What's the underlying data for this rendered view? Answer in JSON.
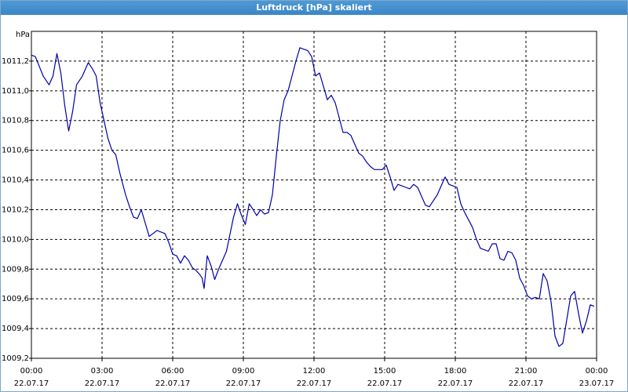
{
  "window": {
    "title": "Luftdruck [hPa] skaliert"
  },
  "colors": {
    "line": "#0000aa",
    "grid": "#000000",
    "titlebar": "#3a86c6"
  },
  "chart_data": {
    "type": "line",
    "title": "Luftdruck [hPa] skaliert",
    "ylabel": "hPa",
    "xlabel": "",
    "grid": true,
    "ylim": [
      1009.2,
      1011.4
    ],
    "xlim": [
      "22.07.17 00:00",
      "23.07.17 00:00"
    ],
    "y_ticks": [
      {
        "value": 1009.2,
        "label": "1009,2"
      },
      {
        "value": 1009.4,
        "label": "1009,4"
      },
      {
        "value": 1009.6,
        "label": "1009,6"
      },
      {
        "value": 1009.8,
        "label": "1009,8"
      },
      {
        "value": 1010.0,
        "label": "1010,0"
      },
      {
        "value": 1010.2,
        "label": "1010,2"
      },
      {
        "value": 1010.4,
        "label": "1010,4"
      },
      {
        "value": 1010.6,
        "label": "1010,6"
      },
      {
        "value": 1010.8,
        "label": "1010,8"
      },
      {
        "value": 1011.0,
        "label": "1011,0"
      },
      {
        "value": 1011.2,
        "label": "1011,2"
      }
    ],
    "x_ticks": [
      {
        "time": "00:00",
        "date": "22.07.17"
      },
      {
        "time": "03:00",
        "date": "22.07.17"
      },
      {
        "time": "06:00",
        "date": "22.07.17"
      },
      {
        "time": "09:00",
        "date": "22.07.17"
      },
      {
        "time": "12:00",
        "date": "22.07.17"
      },
      {
        "time": "15:00",
        "date": "22.07.17"
      },
      {
        "time": "18:00",
        "date": "22.07.17"
      },
      {
        "time": "21:00",
        "date": "22.07.17"
      },
      {
        "time": "00:00",
        "date": "23.07.17"
      }
    ],
    "series": [
      {
        "points": [
          [
            "22.07.17 00:00",
            1011.24
          ],
          [
            "22.07.17 00:10",
            1011.23
          ],
          [
            "22.07.17 00:30",
            1011.1
          ],
          [
            "22.07.17 00:45",
            1011.04
          ],
          [
            "22.07.17 00:55",
            1011.1
          ],
          [
            "22.07.17 01:05",
            1011.25
          ],
          [
            "22.07.17 01:15",
            1011.12
          ],
          [
            "22.07.17 01:25",
            1010.9
          ],
          [
            "22.07.17 01:35",
            1010.73
          ],
          [
            "22.07.17 01:45",
            1010.86
          ],
          [
            "22.07.17 01:55",
            1011.04
          ],
          [
            "22.07.17 02:10",
            1011.1
          ],
          [
            "22.07.17 02:25",
            1011.19
          ],
          [
            "22.07.17 02:35",
            1011.15
          ],
          [
            "22.07.17 02:45",
            1011.1
          ],
          [
            "22.07.17 02:55",
            1010.92
          ],
          [
            "22.07.17 03:05",
            1010.8
          ],
          [
            "22.07.17 03:15",
            1010.68
          ],
          [
            "22.07.17 03:25",
            1010.6
          ],
          [
            "22.07.17 03:35",
            1010.57
          ],
          [
            "22.07.17 03:45",
            1010.45
          ],
          [
            "22.07.17 04:00",
            1010.3
          ],
          [
            "22.07.17 04:10",
            1010.22
          ],
          [
            "22.07.17 04:20",
            1010.15
          ],
          [
            "22.07.17 04:30",
            1010.14
          ],
          [
            "22.07.17 04:40",
            1010.2
          ],
          [
            "22.07.17 04:50",
            1010.11
          ],
          [
            "22.07.17 05:00",
            1010.02
          ],
          [
            "22.07.17 05:10",
            1010.04
          ],
          [
            "22.07.17 05:20",
            1010.06
          ],
          [
            "22.07.17 05:40",
            1010.04
          ],
          [
            "22.07.17 05:50",
            1009.98
          ],
          [
            "22.07.17 06:00",
            1009.9
          ],
          [
            "22.07.17 06:10",
            1009.89
          ],
          [
            "22.07.17 06:20",
            1009.84
          ],
          [
            "22.07.17 06:30",
            1009.89
          ],
          [
            "22.07.17 06:40",
            1009.86
          ],
          [
            "22.07.17 06:50",
            1009.81
          ],
          [
            "22.07.17 07:00",
            1009.79
          ],
          [
            "22.07.17 07:10",
            1009.76
          ],
          [
            "22.07.17 07:15",
            1009.74
          ],
          [
            "22.07.17 07:20",
            1009.67
          ],
          [
            "22.07.17 07:28",
            1009.89
          ],
          [
            "22.07.17 07:38",
            1009.82
          ],
          [
            "22.07.17 07:47",
            1009.73
          ],
          [
            "22.07.17 07:57",
            1009.8
          ],
          [
            "22.07.17 08:17",
            1009.92
          ],
          [
            "22.07.17 08:35",
            1010.15
          ],
          [
            "22.07.17 08:45",
            1010.24
          ],
          [
            "22.07.17 08:54",
            1010.17
          ],
          [
            "22.07.17 09:05",
            1010.1
          ],
          [
            "22.07.17 09:15",
            1010.24
          ],
          [
            "22.07.17 09:25",
            1010.2
          ],
          [
            "22.07.17 09:34",
            1010.16
          ],
          [
            "22.07.17 09:44",
            1010.2
          ],
          [
            "22.07.17 09:54",
            1010.17
          ],
          [
            "22.07.17 10:04",
            1010.18
          ],
          [
            "22.07.17 10:14",
            1010.3
          ],
          [
            "22.07.17 10:24",
            1010.56
          ],
          [
            "22.07.17 10:34",
            1010.8
          ],
          [
            "22.07.17 10:44",
            1010.94
          ],
          [
            "22.07.17 10:54",
            1011.0
          ],
          [
            "22.07.17 11:04",
            1011.1
          ],
          [
            "22.07.17 11:14",
            1011.2
          ],
          [
            "22.07.17 11:24",
            1011.29
          ],
          [
            "22.07.17 11:44",
            1011.27
          ],
          [
            "22.07.17 11:54",
            1011.23
          ],
          [
            "22.07.17 12:04",
            1011.1
          ],
          [
            "22.07.17 12:14",
            1011.12
          ],
          [
            "22.07.17 12:24",
            1011.03
          ],
          [
            "22.07.17 12:34",
            1010.94
          ],
          [
            "22.07.17 12:44",
            1010.97
          ],
          [
            "22.07.17 12:54",
            1010.92
          ],
          [
            "22.07.17 13:04",
            1010.82
          ],
          [
            "22.07.17 13:14",
            1010.72
          ],
          [
            "22.07.17 13:24",
            1010.72
          ],
          [
            "22.07.17 13:34",
            1010.7
          ],
          [
            "22.07.17 13:44",
            1010.64
          ],
          [
            "22.07.17 13:54",
            1010.58
          ],
          [
            "22.07.17 14:04",
            1010.56
          ],
          [
            "22.07.17 14:14",
            1010.52
          ],
          [
            "22.07.17 14:24",
            1010.49
          ],
          [
            "22.07.17 14:34",
            1010.47
          ],
          [
            "22.07.17 14:54",
            1010.47
          ],
          [
            "22.07.17 15:04",
            1010.5
          ],
          [
            "22.07.17 15:14",
            1010.42
          ],
          [
            "22.07.17 15:24",
            1010.33
          ],
          [
            "22.07.17 15:34",
            1010.37
          ],
          [
            "22.07.17 15:44",
            1010.36
          ],
          [
            "22.07.17 15:54",
            1010.35
          ],
          [
            "22.07.17 16:04",
            1010.34
          ],
          [
            "22.07.17 16:14",
            1010.37
          ],
          [
            "22.07.17 16:24",
            1010.35
          ],
          [
            "22.07.17 16:34",
            1010.29
          ],
          [
            "22.07.17 16:44",
            1010.23
          ],
          [
            "22.07.17 16:54",
            1010.22
          ],
          [
            "22.07.17 17:04",
            1010.26
          ],
          [
            "22.07.17 17:14",
            1010.3
          ],
          [
            "22.07.17 17:24",
            1010.36
          ],
          [
            "22.07.17 17:34",
            1010.42
          ],
          [
            "22.07.17 17:44",
            1010.37
          ],
          [
            "22.07.17 17:54",
            1010.36
          ],
          [
            "22.07.17 18:04",
            1010.35
          ],
          [
            "22.07.17 18:14",
            1010.24
          ],
          [
            "22.07.17 18:24",
            1010.18
          ],
          [
            "22.07.17 18:34",
            1010.13
          ],
          [
            "22.07.17 18:44",
            1010.08
          ],
          [
            "22.07.17 18:54",
            1010.0
          ],
          [
            "22.07.17 19:04",
            1009.94
          ],
          [
            "22.07.17 19:14",
            1009.93
          ],
          [
            "22.07.17 19:24",
            1009.92
          ],
          [
            "22.07.17 19:34",
            1009.97
          ],
          [
            "22.07.17 19:44",
            1009.97
          ],
          [
            "22.07.17 19:54",
            1009.87
          ],
          [
            "22.07.17 20:04",
            1009.86
          ],
          [
            "22.07.17 20:14",
            1009.92
          ],
          [
            "22.07.17 20:24",
            1009.91
          ],
          [
            "22.07.17 20:34",
            1009.86
          ],
          [
            "22.07.17 20:44",
            1009.74
          ],
          [
            "22.07.17 20:54",
            1009.69
          ],
          [
            "22.07.17 21:04",
            1009.62
          ],
          [
            "22.07.17 21:14",
            1009.6
          ],
          [
            "22.07.17 21:24",
            1009.61
          ],
          [
            "22.07.17 21:34",
            1009.6
          ],
          [
            "22.07.17 21:44",
            1009.77
          ],
          [
            "22.07.17 21:54",
            1009.72
          ],
          [
            "22.07.17 22:04",
            1009.58
          ],
          [
            "22.07.17 22:14",
            1009.35
          ],
          [
            "22.07.17 22:24",
            1009.28
          ],
          [
            "22.07.17 22:34",
            1009.3
          ],
          [
            "22.07.17 22:44",
            1009.46
          ],
          [
            "22.07.17 22:54",
            1009.62
          ],
          [
            "22.07.17 23:04",
            1009.65
          ],
          [
            "22.07.17 23:14",
            1009.5
          ],
          [
            "22.07.17 23:24",
            1009.37
          ],
          [
            "22.07.17 23:34",
            1009.45
          ],
          [
            "22.07.17 23:44",
            1009.56
          ],
          [
            "22.07.17 23:54",
            1009.55
          ]
        ]
      }
    ]
  }
}
